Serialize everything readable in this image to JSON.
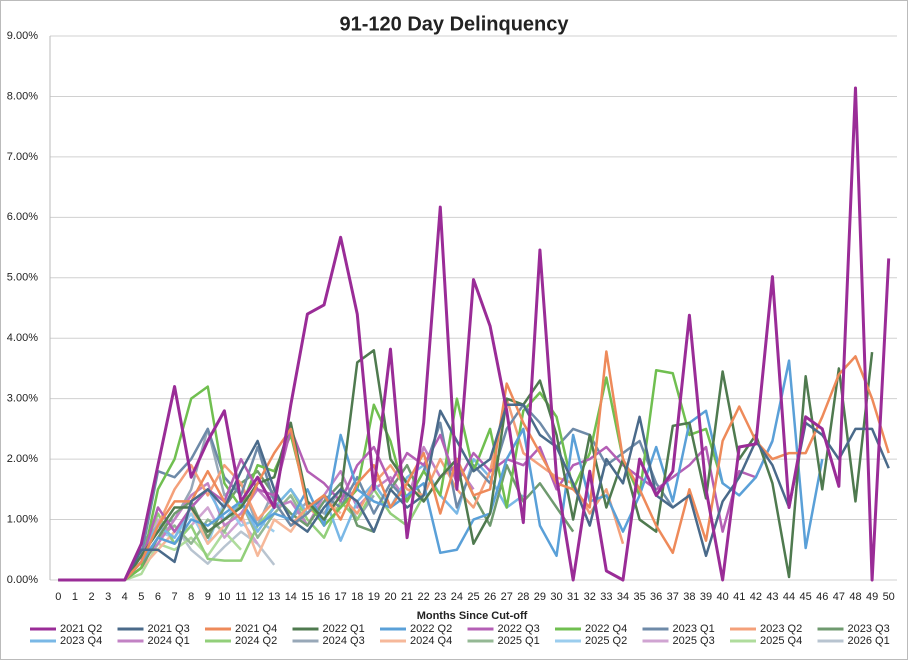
{
  "chart_data": {
    "type": "line",
    "title": "91-120 Day Delinquency",
    "x_label": "Months Since Cut-off",
    "categories": [
      0,
      1,
      2,
      3,
      4,
      5,
      6,
      7,
      8,
      9,
      10,
      11,
      12,
      13,
      14,
      15,
      16,
      17,
      18,
      19,
      20,
      21,
      22,
      23,
      24,
      25,
      26,
      27,
      28,
      29,
      30,
      31,
      32,
      33,
      34,
      35,
      36,
      37,
      38,
      39,
      40,
      41,
      42,
      43,
      44,
      45,
      46,
      47,
      48,
      49,
      50
    ],
    "ylim": [
      0,
      9
    ],
    "yticks": [
      {
        "value": 0,
        "label": "0.00%"
      },
      {
        "value": 1,
        "label": "1.00%"
      },
      {
        "value": 2,
        "label": "2.00%"
      },
      {
        "value": 3,
        "label": "3.00%"
      },
      {
        "value": 4,
        "label": "4.00%"
      },
      {
        "value": 5,
        "label": "5.00%"
      },
      {
        "value": 6,
        "label": "6.00%"
      },
      {
        "value": 7,
        "label": "7.00%"
      },
      {
        "value": 8,
        "label": "8.00%"
      },
      {
        "value": 9,
        "label": "9.00%"
      }
    ],
    "grid": true,
    "legend": "bottom",
    "series": [
      {
        "name": "2021 Q2",
        "color": "#9a2c97",
        "values": [
          0,
          0,
          0,
          0,
          0,
          0.6,
          1.9,
          3.2,
          1.7,
          2.3,
          2.8,
          1.3,
          1.7,
          1.2,
          2.9,
          4.4,
          4.55,
          5.67,
          4.4,
          1.5,
          3.82,
          0.7,
          2.6,
          6.17,
          1.5,
          4.97,
          4.2,
          2.8,
          0.95,
          5.46,
          1.7,
          0,
          1.8,
          0.15,
          0,
          2.0,
          1.4,
          1.8,
          4.38,
          1.5,
          0,
          2.2,
          2.25,
          5.02,
          1.2,
          2.7,
          2.5,
          1.55,
          8.14,
          0,
          5.32
        ]
      },
      {
        "name": "2021 Q3",
        "color": "#4a6a8a",
        "values": [
          0,
          0,
          0,
          0,
          0,
          0.5,
          0.5,
          0.3,
          1.3,
          1.5,
          1.2,
          1.8,
          2.3,
          1.5,
          1.0,
          0.8,
          1.2,
          1.5,
          1.3,
          0.8,
          1.5,
          1.2,
          1.4,
          2.8,
          2.3,
          1.8,
          2.0,
          2.9,
          2.9,
          2.4,
          2.2,
          1.6,
          0.9,
          2.0,
          1.6,
          2.7,
          1.4,
          1.2,
          1.4,
          0.4,
          1.3,
          1.7,
          2.3,
          1.9,
          1.2,
          2.6,
          2.4,
          2.0,
          2.5,
          2.5,
          1.85
        ]
      },
      {
        "name": "2021 Q4",
        "color": "#ee8a5a",
        "values": [
          0,
          0,
          0,
          0,
          0,
          0.3,
          0.9,
          1.3,
          1.3,
          1.8,
          1.3,
          1.0,
          1.6,
          2.1,
          2.5,
          1.2,
          1.4,
          1.0,
          1.6,
          1.9,
          1.2,
          1.6,
          2.1,
          1.1,
          2.0,
          1.4,
          1.5,
          3.25,
          2.6,
          2.1,
          1.6,
          1.5,
          1.2,
          3.78,
          2.0,
          1.5,
          0.9,
          0.45,
          1.5,
          0.65,
          2.3,
          2.87,
          2.3,
          2.0,
          2.1,
          2.1,
          2.7,
          3.4,
          3.7,
          3.0,
          2.1
        ]
      },
      {
        "name": "2022 Q1",
        "color": "#4f7a4f",
        "values": [
          0,
          0,
          0,
          0,
          0,
          0.4,
          0.8,
          1.2,
          1.2,
          0.8,
          1.0,
          1.2,
          1.6,
          1.7,
          2.6,
          1.3,
          1.0,
          1.4,
          3.6,
          3.8,
          2.0,
          1.6,
          1.3,
          1.7,
          2.0,
          0.6,
          1.1,
          3.0,
          2.9,
          3.3,
          2.4,
          1.0,
          2.4,
          1.2,
          2.0,
          1.0,
          0.8,
          2.55,
          2.6,
          1.35,
          3.45,
          2.0,
          2.4,
          1.6,
          0.05,
          3.37,
          1.5,
          3.5,
          1.3,
          3.77,
          null
        ]
      },
      {
        "name": "2022 Q2",
        "color": "#5aa0d8",
        "values": [
          0,
          0,
          0,
          0,
          0,
          0.3,
          0.7,
          0.6,
          1.0,
          0.9,
          1.1,
          1.3,
          0.9,
          1.1,
          1.0,
          1.5,
          0.9,
          2.4,
          1.5,
          1.3,
          1.2,
          1.4,
          1.6,
          0.45,
          0.5,
          1.0,
          1.1,
          2.0,
          2.5,
          0.9,
          0.4,
          2.4,
          1.3,
          1.4,
          0.8,
          1.4,
          2.2,
          1.3,
          2.6,
          2.8,
          1.6,
          1.4,
          1.7,
          2.3,
          3.63,
          0.53,
          2.0,
          null,
          null,
          null,
          null
        ]
      },
      {
        "name": "2022 Q3",
        "color": "#b45fb5",
        "values": [
          0,
          0,
          0,
          0,
          0,
          0.3,
          1.2,
          0.8,
          1.2,
          1.5,
          1.3,
          2.0,
          1.5,
          1.4,
          2.5,
          1.8,
          1.6,
          1.3,
          1.9,
          2.2,
          1.6,
          2.1,
          1.9,
          2.4,
          1.6,
          2.1,
          1.8,
          2.0,
          1.9,
          2.2,
          1.5,
          1.9,
          2.0,
          2.2,
          1.9,
          1.7,
          1.5,
          1.7,
          1.9,
          2.2,
          0.8,
          1.8,
          1.7,
          2.3,
          null,
          null,
          null,
          null,
          null,
          null,
          null
        ]
      },
      {
        "name": "2022 Q4",
        "color": "#70bf50",
        "values": [
          0,
          0,
          0,
          0,
          0,
          0.2,
          1.5,
          2.0,
          3.0,
          3.2,
          1.6,
          1.2,
          1.9,
          1.8,
          2.4,
          1.3,
          0.9,
          1.2,
          1.5,
          2.9,
          2.3,
          1.3,
          1.8,
          1.4,
          3.0,
          1.8,
          2.5,
          1.2,
          2.8,
          3.1,
          2.7,
          1.5,
          2.1,
          3.35,
          2.0,
          1.4,
          3.47,
          3.42,
          2.4,
          2.5,
          1.6,
          null,
          null,
          null,
          null,
          null,
          null,
          null,
          null,
          null,
          null
        ]
      },
      {
        "name": "2023 Q1",
        "color": "#6e8aa8",
        "values": [
          0,
          0,
          0,
          0,
          0,
          0.4,
          1.8,
          1.7,
          2.0,
          2.5,
          1.7,
          1.4,
          2.2,
          1.3,
          0.9,
          1.1,
          1.4,
          1.2,
          1.7,
          1.1,
          1.6,
          1.3,
          1.8,
          2.6,
          1.2,
          1.9,
          1.6,
          2.5,
          2.9,
          2.6,
          2.2,
          2.5,
          2.4,
          1.9,
          2.1,
          2.3,
          1.6,
          1.2,
          null,
          null,
          null,
          null,
          null,
          null,
          null,
          null,
          null,
          null,
          null,
          null,
          null
        ]
      },
      {
        "name": "2023 Q2",
        "color": "#f4a07a",
        "values": [
          0,
          0,
          0,
          0,
          0,
          0.3,
          0.9,
          1.5,
          1.9,
          1.4,
          1.9,
          1.6,
          1.0,
          1.3,
          0.9,
          1.2,
          1.0,
          1.4,
          1.1,
          1.6,
          1.9,
          1.5,
          1.4,
          2.0,
          1.5,
          1.2,
          1.8,
          3.0,
          2.1,
          1.9,
          1.7,
          1.6,
          1.1,
          1.5,
          0.6,
          null,
          null,
          null,
          null,
          null,
          null,
          null,
          null,
          null,
          null,
          null,
          null,
          null,
          null,
          null,
          null
        ]
      },
      {
        "name": "2023 Q3",
        "color": "#6f9a6f",
        "values": [
          0,
          0,
          0,
          0,
          0,
          0.2,
          0.7,
          1.1,
          1.3,
          0.7,
          1.2,
          1.6,
          1.8,
          1.4,
          1.1,
          0.9,
          1.3,
          1.6,
          0.9,
          0.8,
          1.5,
          1.9,
          1.3,
          1.7,
          2.0,
          1.4,
          0.9,
          1.9,
          1.3,
          1.6,
          1.2,
          0.8,
          null,
          null,
          null,
          null,
          null,
          null,
          null,
          null,
          null,
          null,
          null,
          null,
          null,
          null,
          null,
          null,
          null,
          null,
          null
        ]
      },
      {
        "name": "2023 Q4",
        "color": "#7ab8e6",
        "values": [
          0,
          0,
          0,
          0,
          0,
          0.5,
          0.9,
          0.7,
          1.2,
          1.5,
          1.0,
          1.3,
          0.8,
          1.2,
          1.5,
          1.1,
          1.4,
          0.65,
          1.3,
          1.6,
          1.2,
          1.7,
          1.9,
          1.4,
          1.1,
          2.0,
          1.7,
          1.2,
          1.4,
          null,
          null,
          null,
          null,
          null,
          null,
          null,
          null,
          null,
          null,
          null,
          null,
          null,
          null,
          null,
          null,
          null,
          null,
          null,
          null,
          null,
          null
        ]
      },
      {
        "name": "2024 Q1",
        "color": "#c282c4",
        "values": [
          0,
          0,
          0,
          0,
          0,
          0.3,
          0.6,
          1.0,
          1.4,
          1.6,
          0.9,
          1.1,
          1.5,
          1.2,
          1.3,
          0.9,
          1.4,
          1.8,
          1.2,
          1.5,
          1.7,
          1.3,
          2.2,
          1.7,
          1.9,
          1.5,
          null,
          null,
          null,
          null,
          null,
          null,
          null,
          null,
          null,
          null,
          null,
          null,
          null,
          null,
          null,
          null,
          null,
          null,
          null,
          null,
          null,
          null,
          null,
          null,
          null
        ]
      },
      {
        "name": "2024 Q2",
        "color": "#92cf7a",
        "values": [
          0,
          0,
          0,
          0,
          0,
          0.4,
          1.1,
          0.6,
          0.9,
          0.35,
          0.32,
          0.32,
          0.9,
          1.2,
          1.5,
          1.0,
          0.7,
          1.3,
          1.0,
          1.5,
          1.1,
          0.9,
          1.4,
          null,
          null,
          null,
          null,
          null,
          null,
          null,
          null,
          null,
          null,
          null,
          null,
          null,
          null,
          null,
          null,
          null,
          null,
          null,
          null,
          null,
          null,
          null,
          null,
          null,
          null,
          null,
          null
        ]
      },
      {
        "name": "2024 Q3",
        "color": "#98a8b8",
        "values": [
          0,
          0,
          0,
          0,
          0,
          0.6,
          0.9,
          1.0,
          1.5,
          2.5,
          1.4,
          1.6,
          0.9,
          1.5,
          1.0,
          1.3,
          1.1,
          1.5,
          1.0,
          1.4,
          null,
          null,
          null,
          null,
          null,
          null,
          null,
          null,
          null,
          null,
          null,
          null,
          null,
          null,
          null,
          null,
          null,
          null,
          null,
          null,
          null,
          null,
          null,
          null,
          null,
          null,
          null,
          null,
          null,
          null,
          null
        ]
      },
      {
        "name": "2024 Q4",
        "color": "#f6b89a",
        "values": [
          0,
          0,
          0,
          0,
          0,
          0.2,
          0.5,
          0.8,
          1.2,
          0.6,
          0.9,
          1.1,
          0.4,
          1.0,
          0.8,
          1.2,
          1.4,
          1.1,
          null,
          null,
          null,
          null,
          null,
          null,
          null,
          null,
          null,
          null,
          null,
          null,
          null,
          null,
          null,
          null,
          null,
          null,
          null,
          null,
          null,
          null,
          null,
          null,
          null,
          null,
          null,
          null,
          null,
          null,
          null,
          null,
          null
        ]
      },
      {
        "name": "2025 Q1",
        "color": "#94b894",
        "values": [
          0,
          0,
          0,
          0,
          0,
          0.3,
          0.7,
          0.9,
          0.6,
          1.0,
          0.8,
          1.3,
          0.7,
          1.1,
          1.4,
          0.9,
          null,
          null,
          null,
          null,
          null,
          null,
          null,
          null,
          null,
          null,
          null,
          null,
          null,
          null,
          null,
          null,
          null,
          null,
          null,
          null,
          null,
          null,
          null,
          null,
          null,
          null,
          null,
          null,
          null,
          null,
          null,
          null,
          null,
          null,
          null
        ]
      },
      {
        "name": "2025 Q2",
        "color": "#9bcdee",
        "values": [
          0,
          0,
          0,
          0,
          0,
          0.5,
          0.8,
          0.7,
          1.1,
          0.6,
          1.3,
          0.9,
          1.0,
          0.8,
          null,
          null,
          null,
          null,
          null,
          null,
          null,
          null,
          null,
          null,
          null,
          null,
          null,
          null,
          null,
          null,
          null,
          null,
          null,
          null,
          null,
          null,
          null,
          null,
          null,
          null,
          null,
          null,
          null,
          null,
          null,
          null,
          null,
          null,
          null,
          null,
          null
        ]
      },
      {
        "name": "2025 Q3",
        "color": "#d0a4d2",
        "values": [
          0,
          0,
          0,
          0,
          0,
          0.2,
          1.0,
          0.6,
          0.9,
          1.2,
          0.7,
          1.0,
          0.6,
          null,
          null,
          null,
          null,
          null,
          null,
          null,
          null,
          null,
          null,
          null,
          null,
          null,
          null,
          null,
          null,
          null,
          null,
          null,
          null,
          null,
          null,
          null,
          null,
          null,
          null,
          null,
          null,
          null,
          null,
          null,
          null,
          null,
          null,
          null,
          null,
          null,
          null
        ]
      },
      {
        "name": "2025 Q4",
        "color": "#afdc9c",
        "values": [
          0,
          0,
          0,
          0,
          0,
          0.1,
          0.6,
          0.5,
          0.7,
          0.4,
          0.8,
          0.5,
          null,
          null,
          null,
          null,
          null,
          null,
          null,
          null,
          null,
          null,
          null,
          null,
          null,
          null,
          null,
          null,
          null,
          null,
          null,
          null,
          null,
          null,
          null,
          null,
          null,
          null,
          null,
          null,
          null,
          null,
          null,
          null,
          null,
          null,
          null,
          null,
          null,
          null,
          null
        ]
      },
      {
        "name": "2026 Q1",
        "color": "#b8c4d0",
        "values": [
          0,
          0,
          0,
          0,
          0,
          0.4,
          0.8,
          0.9,
          0.5,
          0.27,
          0.55,
          0.8,
          0.6,
          0.25,
          null,
          null,
          null,
          null,
          null,
          null,
          null,
          null,
          null,
          null,
          null,
          null,
          null,
          null,
          null,
          null,
          null,
          null,
          null,
          null,
          null,
          null,
          null,
          null,
          null,
          null,
          null,
          null,
          null,
          null,
          null,
          null,
          null,
          null,
          null,
          null,
          null
        ]
      }
    ]
  }
}
